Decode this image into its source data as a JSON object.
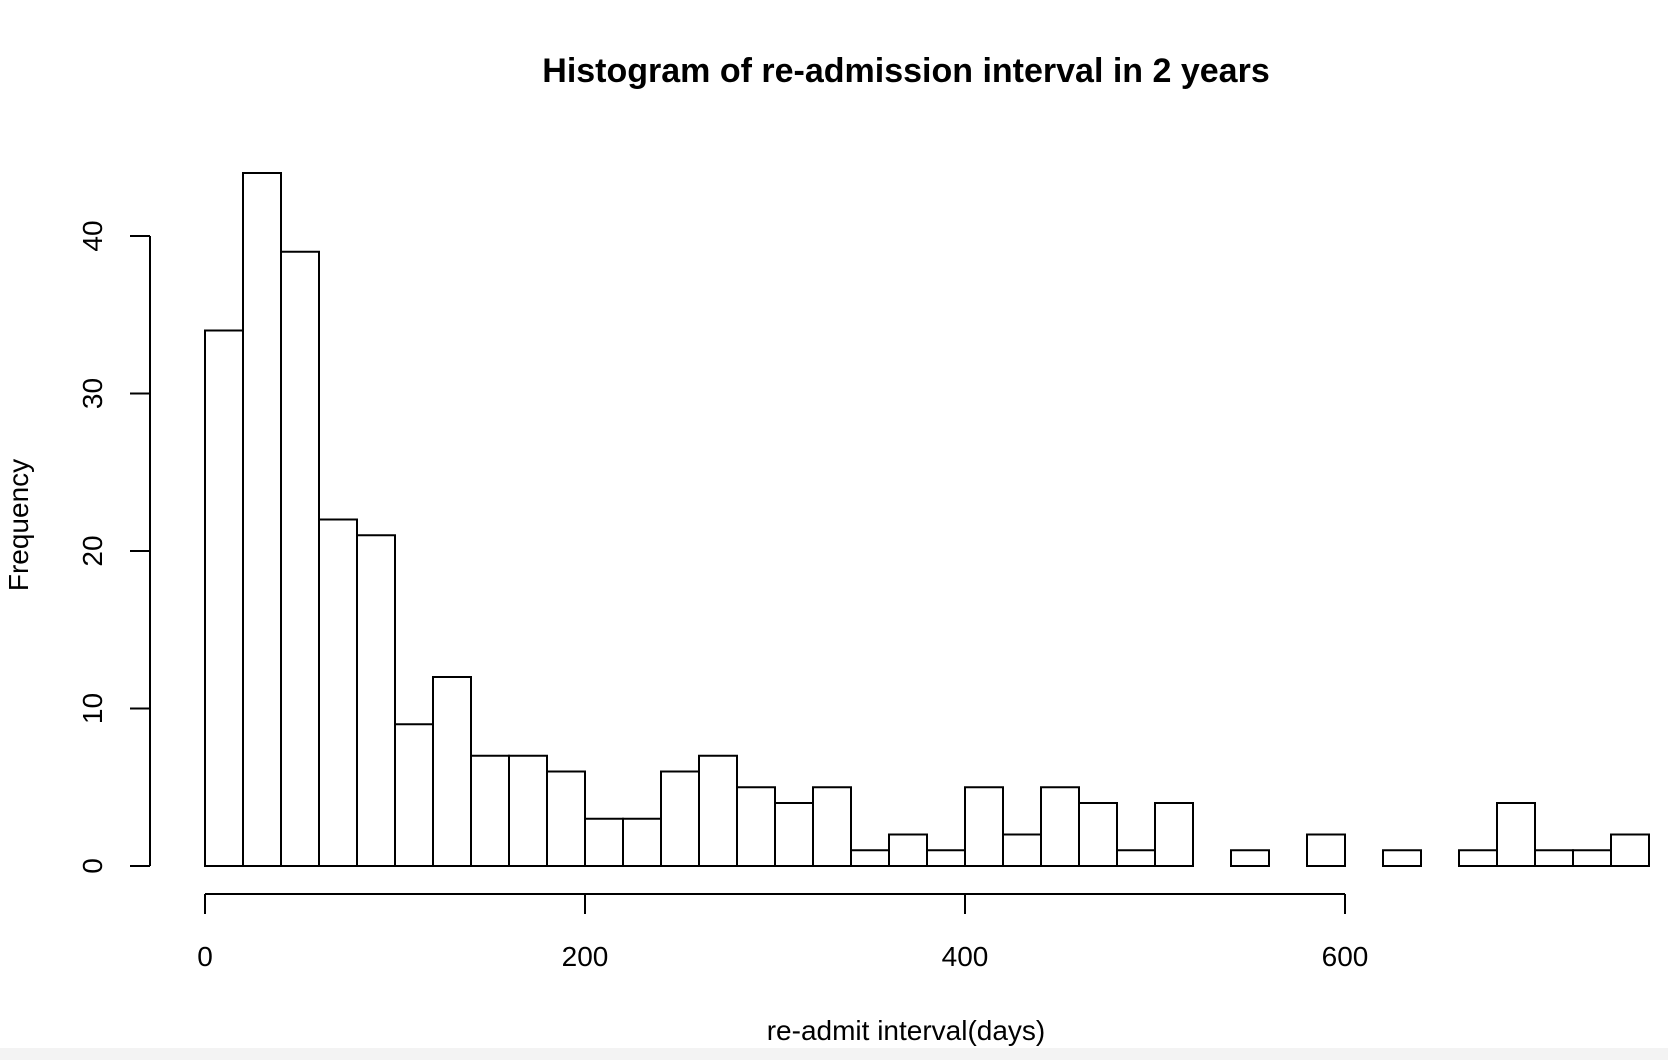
{
  "chart_data": {
    "type": "bar",
    "title": "Histogram of re-admission interval in 2 years",
    "xlabel": "re-admit interval(days)",
    "ylabel": "Frequency",
    "bin_width": 20,
    "bins_start": 0,
    "values": [
      34,
      44,
      39,
      22,
      21,
      9,
      12,
      7,
      7,
      6,
      3,
      3,
      6,
      7,
      5,
      4,
      5,
      1,
      2,
      1,
      5,
      2,
      5,
      4,
      1,
      4,
      0,
      1,
      0,
      2,
      0,
      1,
      0,
      1,
      4,
      1,
      1,
      2
    ],
    "xlim": [
      0,
      760
    ],
    "ylim": [
      0,
      44
    ],
    "xticks": [
      0,
      200,
      400,
      600
    ],
    "xtick_labels": [
      "0",
      "200",
      "400",
      "600"
    ],
    "yticks": [
      0,
      10,
      20,
      30,
      40
    ],
    "ytick_labels": [
      "0",
      "10",
      "20",
      "30",
      "40"
    ],
    "grid": false
  }
}
